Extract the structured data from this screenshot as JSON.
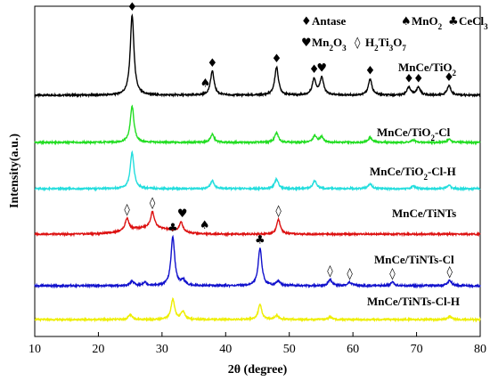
{
  "chart_data": {
    "type": "line",
    "xlabel": "2θ (degree)",
    "ylabel": "Intensity(a.u.)",
    "xlim": [
      10,
      80
    ],
    "xticks": [
      10,
      20,
      30,
      40,
      50,
      60,
      70,
      80
    ],
    "yticks": "none",
    "grid": false,
    "legend": {
      "placement": "top-right",
      "entries": [
        {
          "symbol": "♦",
          "label": "Antase"
        },
        {
          "symbol": "♠",
          "label": "MnO2"
        },
        {
          "symbol": "♣",
          "label": "CeCl3"
        },
        {
          "symbol": "♥",
          "label": "Mn2O3"
        },
        {
          "symbol": "◊",
          "label": "H2Ti3O7"
        }
      ]
    },
    "series": [
      {
        "name": "MnCe/TiO2",
        "color": "#000000",
        "peaks": [
          [
            25.3,
            1.0
          ],
          [
            37.9,
            0.3
          ],
          [
            48.0,
            0.35
          ],
          [
            53.9,
            0.2
          ],
          [
            55.1,
            0.22
          ],
          [
            62.7,
            0.2
          ],
          [
            68.8,
            0.1
          ],
          [
            70.3,
            0.1
          ],
          [
            75.1,
            0.12
          ]
        ],
        "markers": [
          {
            "x": 25.3,
            "symbol": "♦"
          },
          {
            "x": 36.8,
            "symbol": "♠"
          },
          {
            "x": 37.9,
            "symbol": "♦"
          },
          {
            "x": 48.0,
            "symbol": "♦"
          },
          {
            "x": 53.9,
            "symbol": "♦"
          },
          {
            "x": 55.1,
            "symbol": "♥"
          },
          {
            "x": 62.7,
            "symbol": "♦"
          },
          {
            "x": 68.8,
            "symbol": "♦"
          },
          {
            "x": 70.3,
            "symbol": "♦"
          },
          {
            "x": 75.1,
            "symbol": "♦"
          }
        ]
      },
      {
        "name": "MnCe/TiO2-Cl",
        "color": "#22dd22",
        "peaks": [
          [
            25.3,
            0.45
          ],
          [
            37.9,
            0.1
          ],
          [
            48.0,
            0.12
          ],
          [
            54.0,
            0.08
          ],
          [
            55.1,
            0.07
          ],
          [
            62.7,
            0.06
          ],
          [
            69.5,
            0.03
          ],
          [
            75.1,
            0.04
          ]
        ],
        "markers": []
      },
      {
        "name": "MnCe/TiO2-Cl-H",
        "color": "#22dddd",
        "peaks": [
          [
            25.3,
            0.45
          ],
          [
            37.9,
            0.1
          ],
          [
            48.0,
            0.12
          ],
          [
            54.0,
            0.1
          ],
          [
            62.7,
            0.06
          ],
          [
            69.5,
            0.03
          ],
          [
            75.1,
            0.04
          ]
        ],
        "markers": []
      },
      {
        "name": "MnCe/TiNTs",
        "color": "#dd1111",
        "peaks": [
          [
            24.5,
            0.15
          ],
          [
            28.5,
            0.2
          ],
          [
            33.0,
            0.12
          ],
          [
            48.3,
            0.18
          ]
        ],
        "markers": [
          {
            "x": 24.5,
            "symbol": "◊"
          },
          {
            "x": 28.5,
            "symbol": "◊"
          },
          {
            "x": 33.2,
            "symbol": "♥"
          },
          {
            "x": 36.7,
            "symbol": "♠"
          },
          {
            "x": 48.3,
            "symbol": "◊"
          }
        ]
      },
      {
        "name": "MnCe/TiNTs-Cl",
        "color": "#1111cc",
        "peaks": [
          [
            25.3,
            0.05
          ],
          [
            27.3,
            0.04
          ],
          [
            31.7,
            0.55
          ],
          [
            33.3,
            0.06
          ],
          [
            45.4,
            0.42
          ],
          [
            48.3,
            0.05
          ],
          [
            56.4,
            0.07
          ],
          [
            59.5,
            0.04
          ],
          [
            66.2,
            0.04
          ],
          [
            75.2,
            0.06
          ]
        ],
        "markers": [
          {
            "x": 31.7,
            "symbol": "♣"
          },
          {
            "x": 45.4,
            "symbol": "♣"
          },
          {
            "x": 56.4,
            "symbol": "◊"
          },
          {
            "x": 59.5,
            "symbol": "◊"
          },
          {
            "x": 66.2,
            "symbol": "◊"
          },
          {
            "x": 75.2,
            "symbol": "◊"
          }
        ]
      },
      {
        "name": "MnCe/TiNTs-Cl-H",
        "color": "#eeee00",
        "peaks": [
          [
            25.0,
            0.06
          ],
          [
            31.7,
            0.25
          ],
          [
            33.3,
            0.1
          ],
          [
            45.4,
            0.18
          ],
          [
            48.0,
            0.05
          ],
          [
            56.4,
            0.03
          ],
          [
            75.2,
            0.04
          ]
        ],
        "markers": []
      }
    ]
  }
}
